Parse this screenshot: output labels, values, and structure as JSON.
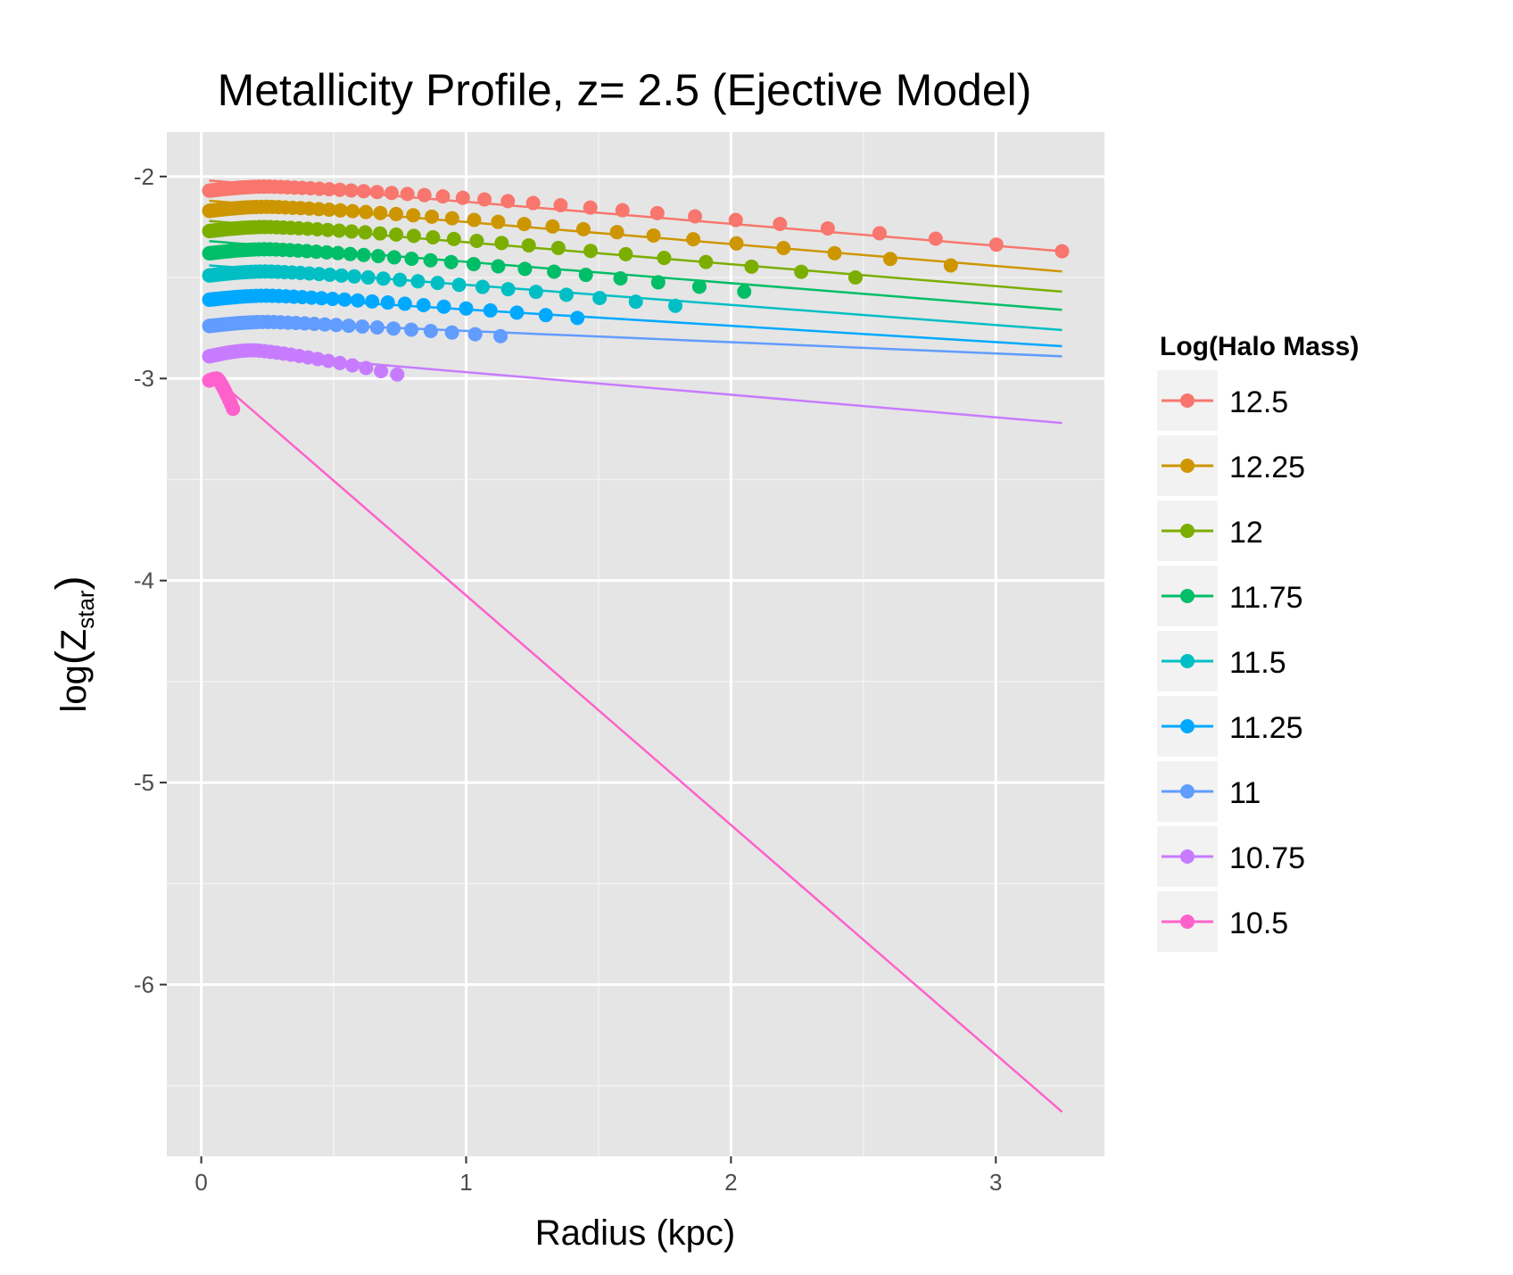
{
  "chart_data": {
    "type": "line",
    "title": "Metallicity Profile, z= 2.5 (Ejective Model)",
    "xlabel": "Radius (kpc)",
    "ylabel": "log(Z_star)",
    "ylabel_main": "log",
    "ylabel_var": "Z",
    "ylabel_sub": "star",
    "xlim": [
      -0.13,
      3.41
    ],
    "ylim": [
      -6.85,
      -1.78
    ],
    "xticks": [
      0,
      1,
      2,
      3
    ],
    "xtick_labels": [
      "0",
      "1",
      "2",
      "3"
    ],
    "yticks": [
      -2,
      -3,
      -4,
      -5,
      -6
    ],
    "ytick_labels": [
      "-2",
      "-3",
      "-4",
      "-5",
      "-6"
    ],
    "legend": {
      "title": "Log(Halo Mass)",
      "position": "right"
    },
    "series": [
      {
        "name": "12.5",
        "color": "#F8766D",
        "line": {
          "x": [
            0.03,
            3.25
          ],
          "y": [
            -2.02,
            -2.37
          ]
        },
        "points": {
          "r_start": 0.03,
          "r_peak": 0.25,
          "r_end": 3.25,
          "y_start": -2.07,
          "y_peak": -2.05,
          "y_end": -2.37,
          "n": 60
        }
      },
      {
        "name": "12.25",
        "color": "#CD9600",
        "line": {
          "x": [
            0.03,
            3.25
          ],
          "y": [
            -2.12,
            -2.47
          ]
        },
        "points": {
          "r_start": 0.03,
          "r_peak": 0.25,
          "r_end": 2.83,
          "y_start": -2.17,
          "y_peak": -2.15,
          "y_end": -2.44,
          "n": 55
        }
      },
      {
        "name": "12",
        "color": "#7CAE00",
        "line": {
          "x": [
            0.03,
            3.25
          ],
          "y": [
            -2.22,
            -2.57
          ]
        },
        "points": {
          "r_start": 0.03,
          "r_peak": 0.25,
          "r_end": 2.47,
          "y_start": -2.27,
          "y_peak": -2.25,
          "y_end": -2.5,
          "n": 52
        }
      },
      {
        "name": "11.75",
        "color": "#00BE67",
        "line": {
          "x": [
            0.03,
            3.25
          ],
          "y": [
            -2.32,
            -2.66
          ]
        },
        "points": {
          "r_start": 0.03,
          "r_peak": 0.25,
          "r_end": 2.05,
          "y_start": -2.38,
          "y_peak": -2.36,
          "y_end": -2.57,
          "n": 50
        }
      },
      {
        "name": "11.5",
        "color": "#00BFC4",
        "line": {
          "x": [
            0.03,
            3.25
          ],
          "y": [
            -2.44,
            -2.76
          ]
        },
        "points": {
          "r_start": 0.03,
          "r_peak": 0.25,
          "r_end": 1.79,
          "y_start": -2.49,
          "y_peak": -2.47,
          "y_end": -2.64,
          "n": 48
        }
      },
      {
        "name": "11.25",
        "color": "#00A9FF",
        "line": {
          "x": [
            0.03,
            3.25
          ],
          "y": [
            -2.58,
            -2.84
          ]
        },
        "points": {
          "r_start": 0.03,
          "r_peak": 0.25,
          "r_end": 1.42,
          "y_start": -2.61,
          "y_peak": -2.59,
          "y_end": -2.7,
          "n": 45
        }
      },
      {
        "name": "11",
        "color": "#619CFF",
        "line": {
          "x": [
            0.03,
            3.25
          ],
          "y": [
            -2.71,
            -2.89
          ]
        },
        "points": {
          "r_start": 0.03,
          "r_peak": 0.25,
          "r_end": 1.13,
          "y_start": -2.74,
          "y_peak": -2.72,
          "y_end": -2.79,
          "n": 42
        }
      },
      {
        "name": "10.75",
        "color": "#C77CFF",
        "line": {
          "x": [
            0.03,
            3.25
          ],
          "y": [
            -2.86,
            -3.22
          ]
        },
        "points": {
          "r_start": 0.03,
          "r_peak": 0.2,
          "r_end": 0.74,
          "y_start": -2.89,
          "y_peak": -2.86,
          "y_end": -2.98,
          "n": 38
        }
      },
      {
        "name": "10.5",
        "color": "#FF61CC",
        "line": {
          "x": [
            0.09,
            3.25
          ],
          "y": [
            -3.04,
            -6.63
          ]
        },
        "points": {
          "r_start": 0.03,
          "r_peak": 0.06,
          "r_end": 0.12,
          "y_start": -3.01,
          "y_peak": -3.0,
          "y_end": -3.15,
          "n": 22
        }
      }
    ]
  }
}
